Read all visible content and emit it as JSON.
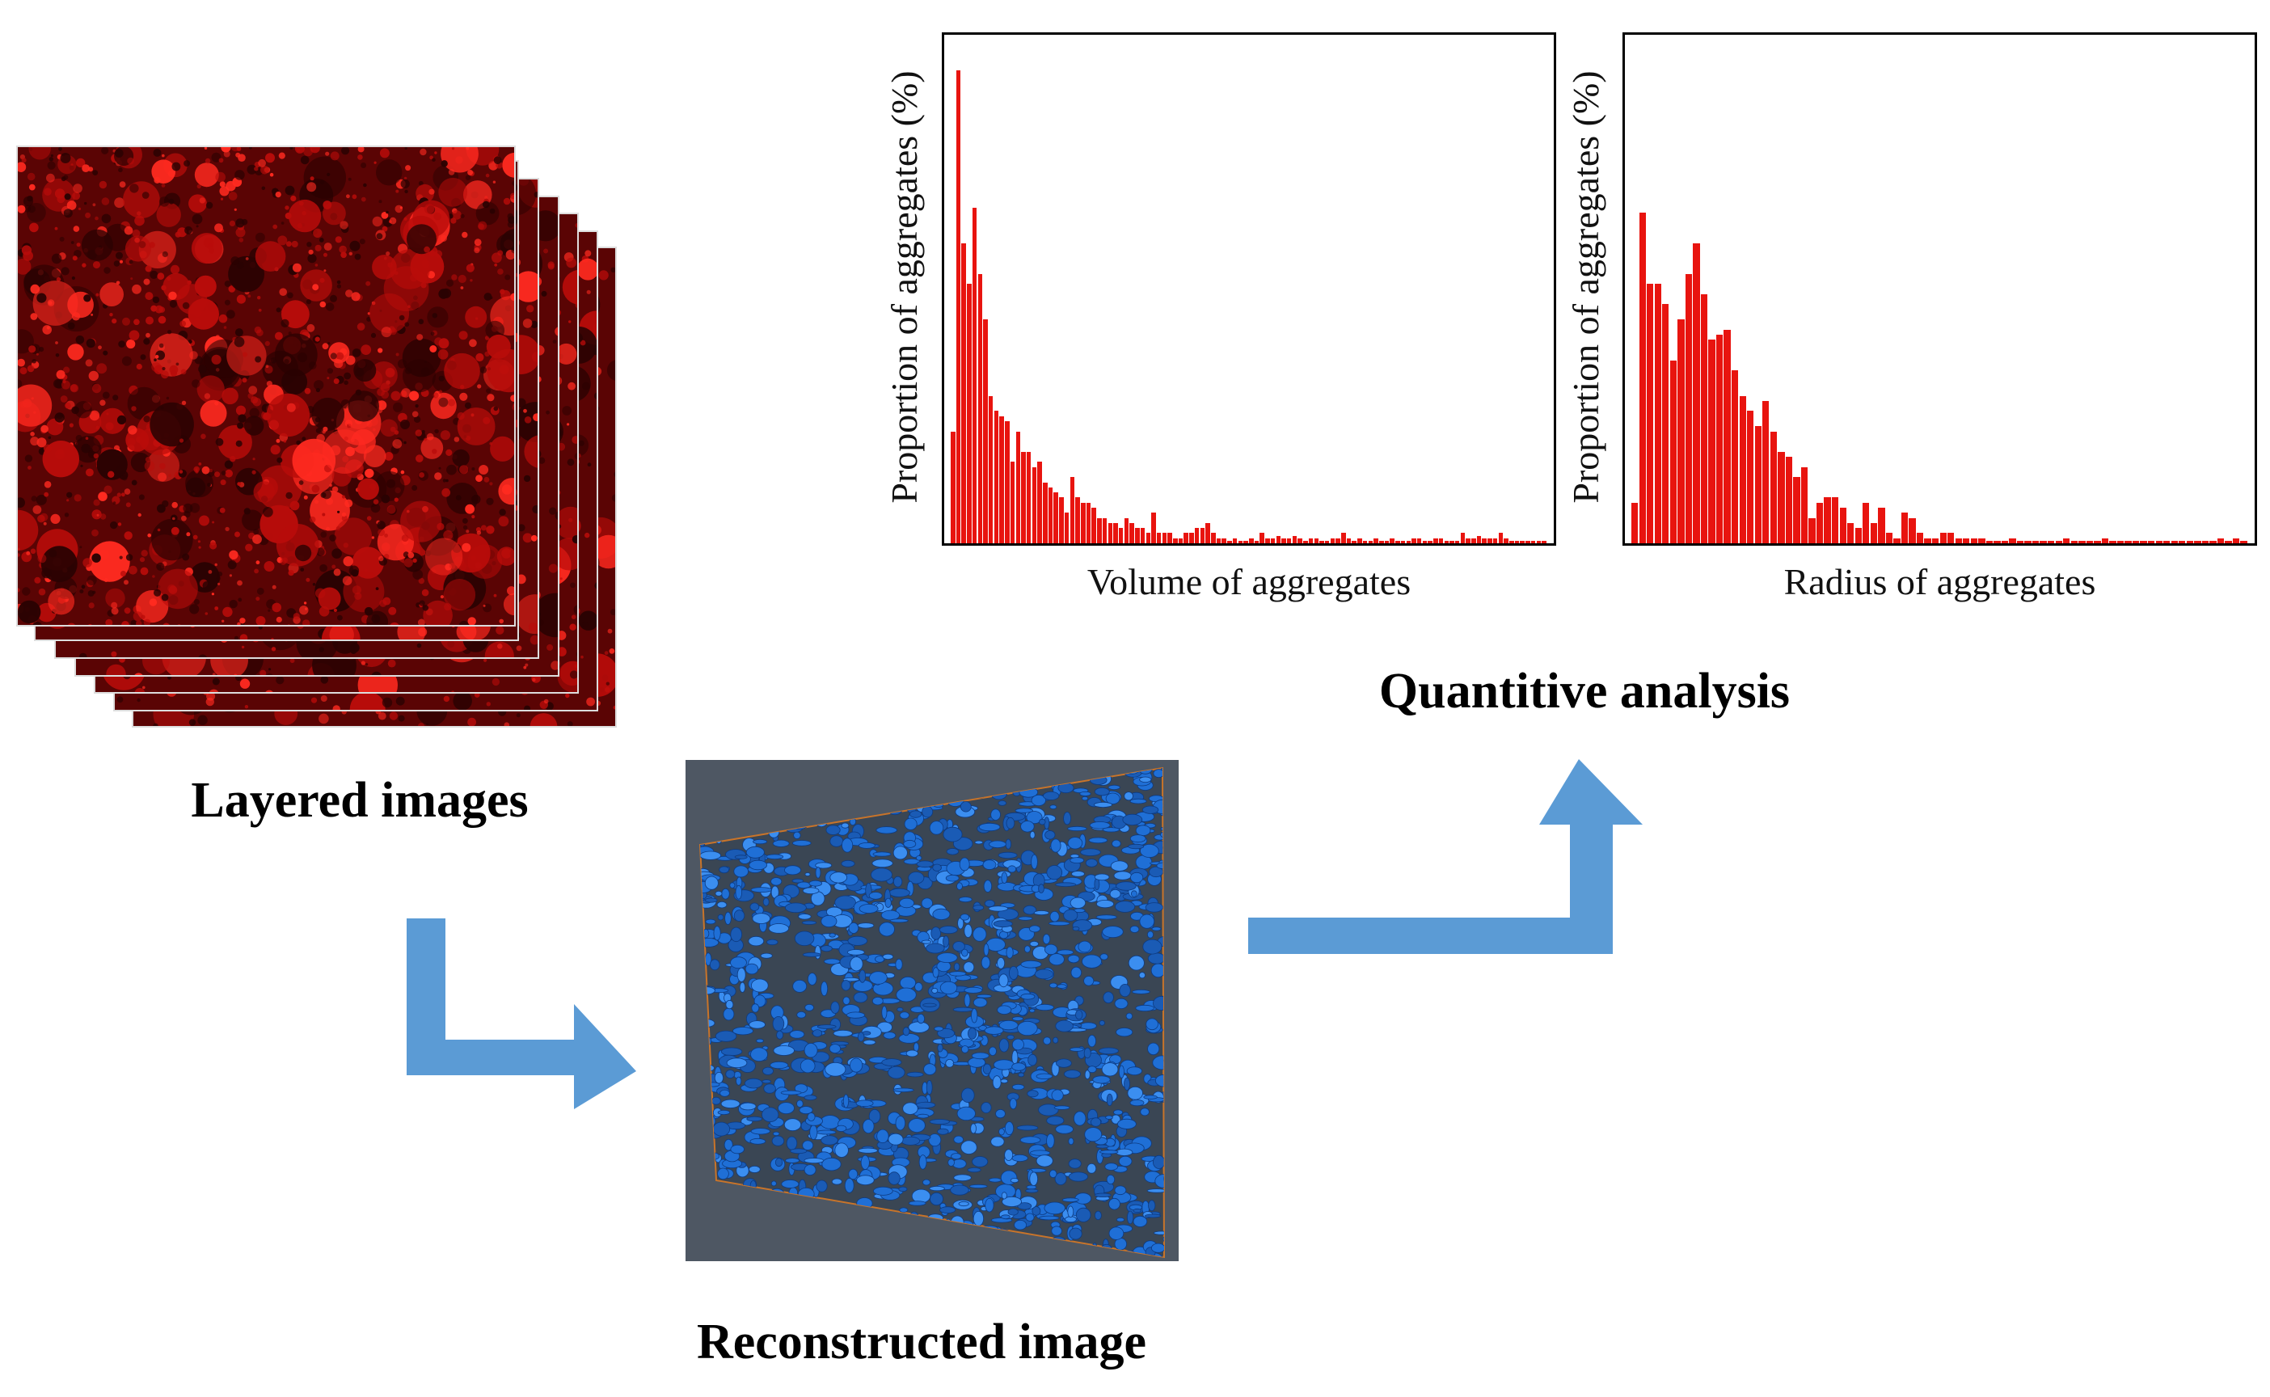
{
  "captions": {
    "layered": "Layered images",
    "reconstructed": "Reconstructed image",
    "quantitative": "Quantitive analysis"
  },
  "colors": {
    "confocal_red": "#e8140f",
    "confocal_dark": "#2a0202",
    "arrow_blue": "#5b9bd5",
    "recon_bg": "#4e5763",
    "aggregate_blue": "#1f6fd6"
  },
  "chart_data": [
    {
      "type": "bar",
      "title": "",
      "xlabel": "Volume of aggregates",
      "ylabel": "Proportion of aggregates (%)",
      "values": [
        2.2,
        9.3,
        5.9,
        5.1,
        6.6,
        5.3,
        4.4,
        2.9,
        2.6,
        2.5,
        2.4,
        1.6,
        2.2,
        1.8,
        1.8,
        1.5,
        1.6,
        1.2,
        1.1,
        1.0,
        0.9,
        0.6,
        1.3,
        0.9,
        0.8,
        0.8,
        0.7,
        0.5,
        0.5,
        0.4,
        0.4,
        0.3,
        0.5,
        0.4,
        0.3,
        0.3,
        0.2,
        0.6,
        0.2,
        0.2,
        0.2,
        0.1,
        0.1,
        0.2,
        0.2,
        0.3,
        0.3,
        0.4,
        0.2,
        0.1,
        0.1,
        0.05,
        0.1,
        0.05,
        0.05,
        0.1,
        0.05,
        0.2,
        0.1,
        0.1,
        0.15,
        0.1,
        0.1,
        0.15,
        0.1,
        0.05,
        0.1,
        0.1,
        0.05,
        0.05,
        0.1,
        0.1,
        0.2,
        0.1,
        0.05,
        0.1,
        0.05,
        0.05,
        0.1,
        0.05,
        0.05,
        0.1,
        0.05,
        0.05,
        0.05,
        0.1,
        0.1,
        0.05,
        0.05,
        0.1,
        0.1,
        0.05,
        0.05,
        0.05,
        0.2,
        0.1,
        0.1,
        0.15,
        0.1,
        0.1,
        0.1,
        0.2,
        0.1,
        0.05,
        0.05,
        0.05,
        0.05,
        0.05,
        0.05,
        0.05
      ],
      "ylim": [
        0,
        10
      ],
      "grid": false
    },
    {
      "type": "bar",
      "title": "",
      "xlabel": "Radius of aggregates",
      "ylabel": "Proportion of aggregates (%)",
      "values": [
        0.8,
        6.5,
        5.1,
        5.1,
        4.7,
        3.6,
        4.4,
        5.3,
        5.9,
        4.9,
        4.0,
        4.1,
        4.2,
        3.4,
        2.9,
        2.6,
        2.3,
        2.8,
        2.2,
        1.8,
        1.7,
        1.3,
        1.5,
        0.5,
        0.8,
        0.9,
        0.9,
        0.7,
        0.4,
        0.3,
        0.8,
        0.4,
        0.7,
        0.2,
        0.1,
        0.6,
        0.5,
        0.2,
        0.1,
        0.1,
        0.2,
        0.2,
        0.1,
        0.1,
        0.1,
        0.1,
        0.05,
        0.05,
        0.05,
        0.1,
        0.05,
        0.05,
        0.05,
        0.05,
        0.05,
        0.05,
        0.1,
        0.05,
        0.05,
        0.05,
        0.05,
        0.1,
        0.05,
        0.05,
        0.05,
        0.05,
        0.05,
        0.05,
        0.05,
        0.05,
        0.05,
        0.05,
        0.05,
        0.05,
        0.05,
        0.05,
        0.1,
        0.05,
        0.1,
        0.05
      ],
      "ylim": [
        0,
        10
      ],
      "grid": false
    }
  ]
}
